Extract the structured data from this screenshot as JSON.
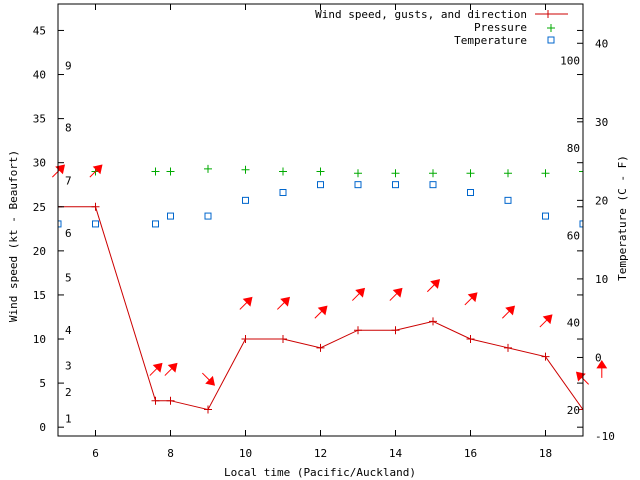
{
  "chart_data": {
    "type": "line",
    "title": "",
    "xlabel": "Local time (Pacific/Auckland)",
    "ylabel": "Wind speed (kt - Beaufort)",
    "y2label": "Temperature (C - F)",
    "xlim": [
      5,
      19
    ],
    "ylim": [
      -1,
      48
    ],
    "y2lim": [
      -10,
      45
    ],
    "x_ticks": [
      6,
      8,
      10,
      12,
      14,
      16,
      18
    ],
    "y_ticks": [
      0,
      5,
      10,
      15,
      20,
      25,
      30,
      35,
      40,
      45
    ],
    "y2_ticks_celsius": [
      -10,
      0,
      10,
      20,
      30,
      40
    ],
    "y2_ticks_fahrenheit": [
      20,
      40,
      60,
      80,
      100
    ],
    "beaufort_ticks": [
      {
        "label": "1",
        "kt": 1
      },
      {
        "label": "2",
        "kt": 4
      },
      {
        "label": "3",
        "kt": 7
      },
      {
        "label": "4",
        "kt": 11
      },
      {
        "label": "5",
        "kt": 17
      },
      {
        "label": "6",
        "kt": 22
      },
      {
        "label": "7",
        "kt": 28
      },
      {
        "label": "8",
        "kt": 34
      },
      {
        "label": "9",
        "kt": 41
      }
    ],
    "legend": {
      "placement": "top-right",
      "entries": [
        "Wind speed, gusts, and direction",
        "Pressure",
        "Temperature"
      ]
    },
    "grid": false,
    "colors": {
      "wind": "#cc0000",
      "arrow": "#ff0000",
      "pressure": "#00aa00",
      "temperature": "#0066cc"
    },
    "series": [
      {
        "name": "Wind speed, gusts, and direction",
        "x": [
          5,
          6,
          7.6,
          8,
          9,
          10,
          11,
          12,
          13,
          14,
          15,
          16,
          17,
          18,
          19
        ],
        "values": [
          25,
          25,
          3,
          3,
          2,
          10,
          10,
          9,
          11,
          11,
          12,
          10,
          9,
          8,
          2
        ]
      },
      {
        "name": "Pressure",
        "x": [
          6,
          7.6,
          8,
          9,
          10,
          11,
          12,
          13,
          14,
          15,
          16,
          17,
          18,
          19
        ],
        "values": [
          29,
          29,
          29,
          29.3,
          29.2,
          29,
          29,
          28.8,
          28.8,
          28.8,
          28.8,
          28.8,
          28.8,
          29
        ]
      },
      {
        "name": "Temperature",
        "x": [
          5,
          6,
          7.6,
          8,
          9,
          10,
          11,
          12,
          13,
          14,
          15,
          16,
          17,
          18,
          19
        ],
        "values": [
          17,
          17,
          17,
          18,
          18,
          20,
          21,
          22,
          22,
          22,
          22,
          21,
          20,
          18,
          17
        ]
      },
      {
        "name": "Wind direction arrows",
        "x": [
          5,
          6,
          7.6,
          8,
          9,
          10,
          11,
          12,
          13,
          14,
          15,
          16,
          17,
          18,
          19,
          19.5
        ],
        "arrow_y": [
          29,
          29,
          6.5,
          6.5,
          5.5,
          14,
          14,
          13,
          15,
          15,
          16,
          14.5,
          13,
          12,
          5.5,
          6.5
        ],
        "direction_deg": [
          315,
          315,
          315,
          315,
          45,
          315,
          315,
          315,
          315,
          315,
          315,
          315,
          315,
          315,
          225,
          270
        ]
      }
    ]
  }
}
